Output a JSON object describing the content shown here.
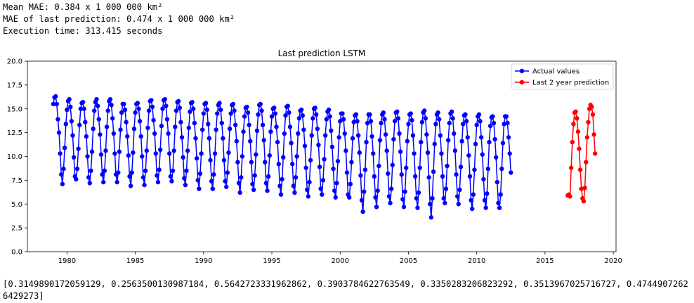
{
  "output": {
    "mean_mae": "Mean MAE: 0.384 x 1 000 000 km²",
    "mae_last": "MAE of last prediction: 0.474 x 1 000 000 km²",
    "exec_time": "Execution time: 313.415 seconds",
    "list_text": "[0.3149890172059129, 0.2563500130987184, 0.5642723331962862, 0.3903784622763549, 0.3350283206823292, 0.3513967025716727, 0.47449072626429273]"
  },
  "chart_data": {
    "type": "line",
    "title": "Last prediction LSTM",
    "xlabel": "",
    "ylabel": "",
    "xlim": [
      1977.1,
      2020.2
    ],
    "ylim": [
      0,
      20
    ],
    "xticks": [
      1980,
      1985,
      1990,
      1995,
      2000,
      2005,
      2010,
      2015,
      2020
    ],
    "yticks": [
      0.0,
      2.5,
      5.0,
      7.5,
      10.0,
      12.5,
      15.0,
      17.5,
      20.0
    ],
    "legend_position": "top-right",
    "series": [
      {
        "name": "Actual values",
        "color": "#0000ff",
        "x_start": 1979.0,
        "x_step": 0.0833333,
        "values": [
          15.5,
          16.2,
          16.3,
          15.5,
          13.9,
          12.5,
          10.3,
          8.1,
          7.1,
          8.7,
          10.9,
          13.4,
          14.9,
          15.8,
          16.0,
          15.2,
          13.7,
          12.2,
          9.9,
          7.9,
          7.6,
          8.7,
          10.8,
          13.3,
          15.0,
          15.6,
          15.7,
          15.0,
          13.6,
          12.1,
          10.0,
          7.8,
          7.2,
          8.5,
          10.5,
          12.9,
          14.8,
          15.7,
          16.0,
          15.3,
          13.9,
          12.3,
          10.2,
          8.1,
          7.3,
          8.5,
          10.6,
          13.1,
          14.8,
          15.8,
          16.0,
          15.4,
          14.0,
          12.4,
          10.3,
          8.1,
          7.3,
          8.3,
          10.5,
          12.8,
          14.6,
          15.5,
          15.5,
          14.9,
          13.6,
          12.1,
          10.1,
          7.9,
          6.9,
          8.3,
          10.4,
          12.9,
          14.6,
          15.5,
          15.6,
          15.0,
          13.7,
          12.1,
          10.0,
          7.8,
          7.0,
          8.5,
          10.6,
          13.0,
          14.8,
          15.8,
          15.9,
          15.2,
          13.8,
          12.4,
          10.3,
          8.0,
          7.3,
          8.6,
          10.7,
          13.2,
          15.0,
          15.9,
          16.0,
          15.3,
          13.9,
          12.4,
          10.3,
          7.9,
          7.4,
          8.5,
          10.6,
          13.1,
          14.8,
          15.7,
          15.8,
          15.1,
          13.6,
          12.0,
          9.9,
          7.7,
          7.0,
          8.5,
          10.6,
          13.0,
          14.7,
          15.6,
          15.7,
          15.0,
          13.5,
          11.9,
          9.8,
          7.5,
          6.6,
          8.2,
          10.3,
          12.8,
          14.5,
          15.5,
          15.6,
          14.9,
          13.4,
          11.9,
          9.6,
          7.4,
          6.6,
          8.1,
          10.3,
          12.8,
          14.5,
          15.4,
          15.6,
          14.9,
          13.5,
          11.9,
          9.6,
          7.4,
          6.8,
          8.3,
          10.4,
          12.9,
          14.5,
          15.4,
          15.5,
          14.8,
          13.3,
          11.6,
          9.4,
          7.2,
          6.2,
          7.8,
          10.0,
          12.6,
          14.2,
          15.1,
          15.2,
          14.6,
          13.3,
          11.6,
          9.4,
          7.1,
          6.5,
          8.0,
          10.2,
          12.7,
          14.4,
          15.4,
          15.5,
          14.8,
          13.3,
          11.7,
          9.4,
          7.2,
          6.4,
          7.9,
          10.1,
          12.6,
          14.2,
          15.0,
          15.1,
          14.5,
          13.1,
          11.5,
          9.2,
          6.9,
          6.0,
          7.6,
          9.9,
          12.4,
          14.3,
          15.2,
          15.3,
          14.6,
          13.1,
          11.4,
          9.2,
          6.9,
          6.2,
          7.8,
          10.0,
          12.4,
          14.0,
          14.8,
          14.9,
          14.3,
          12.8,
          11.1,
          8.8,
          6.5,
          5.8,
          7.3,
          9.6,
          12.2,
          14.0,
          15.0,
          15.1,
          14.4,
          12.9,
          11.2,
          8.9,
          6.6,
          6.0,
          7.5,
          9.7,
          12.2,
          13.9,
          14.7,
          14.9,
          14.2,
          12.7,
          11.0,
          8.7,
          6.4,
          5.7,
          7.2,
          9.5,
          12.0,
          13.7,
          14.5,
          14.5,
          13.9,
          12.4,
          10.6,
          8.3,
          6.0,
          5.7,
          7.1,
          9.4,
          11.9,
          13.6,
          14.3,
          14.4,
          13.7,
          12.2,
          10.4,
          8.0,
          5.4,
          4.2,
          6.3,
          8.6,
          11.5,
          13.5,
          14.4,
          14.4,
          13.7,
          12.1,
          10.3,
          7.9,
          5.7,
          4.7,
          6.4,
          9.0,
          11.7,
          13.5,
          14.4,
          14.6,
          13.9,
          12.3,
          10.6,
          8.2,
          5.8,
          5.1,
          6.6,
          9.1,
          11.8,
          13.7,
          14.6,
          14.7,
          14.0,
          12.4,
          10.5,
          8.1,
          5.5,
          4.7,
          6.3,
          8.8,
          11.6,
          13.4,
          14.4,
          14.5,
          13.8,
          12.2,
          10.3,
          7.9,
          5.6,
          4.6,
          6.2,
          8.8,
          11.5,
          13.6,
          14.6,
          14.8,
          14.0,
          12.3,
          10.4,
          7.8,
          5.0,
          3.6,
          5.6,
          8.4,
          11.3,
          13.4,
          14.4,
          14.6,
          13.9,
          12.2,
          10.3,
          7.9,
          5.6,
          5.1,
          6.6,
          9.0,
          11.7,
          13.5,
          14.5,
          14.7,
          14.0,
          12.4,
          10.6,
          8.1,
          5.8,
          5.0,
          6.5,
          8.9,
          11.6,
          13.4,
          14.3,
          14.4,
          13.7,
          12.0,
          10.1,
          7.9,
          5.4,
          4.5,
          6.0,
          8.6,
          11.3,
          13.3,
          14.2,
          14.4,
          13.7,
          12.0,
          10.2,
          7.6,
          5.4,
          4.6,
          6.1,
          8.7,
          11.5,
          13.2,
          14.1,
          14.2,
          13.5,
          11.8,
          9.9,
          7.3,
          5.1,
          4.6,
          6.0,
          8.7,
          11.4,
          13.4,
          14.2,
          14.2,
          13.5,
          12.0,
          10.3,
          8.3
        ]
      },
      {
        "name": "Last 2 year prediction",
        "color": "#ff0000",
        "x_start": 2016.6667,
        "x_step": 0.0833333,
        "values": [
          5.9,
          6.0,
          5.8,
          8.8,
          11.5,
          13.4,
          14.6,
          14.7,
          14.0,
          12.6,
          10.8,
          8.6,
          6.6,
          5.6,
          5.3,
          6.7,
          9.4,
          12.0,
          13.6,
          15.0,
          15.4,
          15.2,
          14.4,
          12.3,
          10.3
        ]
      }
    ]
  }
}
